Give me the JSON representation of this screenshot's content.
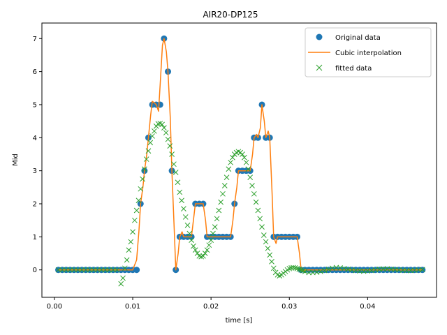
{
  "chart_data": {
    "type": "line",
    "title": "AIR20-DP125",
    "xlabel": "time [s]",
    "ylabel": "Mid",
    "xlim": [
      -0.0016,
      0.0488
    ],
    "ylim": [
      -0.83,
      7.47
    ],
    "x_ticks": [
      0.0,
      0.01,
      0.02,
      0.03,
      0.04
    ],
    "x_tick_labels": [
      "0.00",
      "0.01",
      "0.02",
      "0.03",
      "0.04"
    ],
    "y_ticks": [
      0,
      1,
      2,
      3,
      4,
      5,
      6,
      7
    ],
    "y_tick_labels": [
      "0",
      "1",
      "2",
      "3",
      "4",
      "5",
      "6",
      "7"
    ],
    "grid": false,
    "legend_position": "top-right",
    "colors": {
      "original": "#1f77b4",
      "cubic": "#ff7f0e",
      "fitted": "#2ca02c"
    },
    "series": [
      {
        "name": "Original data",
        "style": "markers",
        "marker": "circle",
        "x": [
          0.0005,
          0.001,
          0.0015,
          0.002,
          0.0025,
          0.003,
          0.0035,
          0.004,
          0.0045,
          0.005,
          0.0055,
          0.006,
          0.0065,
          0.007,
          0.0075,
          0.008,
          0.0085,
          0.009,
          0.0095,
          0.01,
          0.0105,
          0.011,
          0.0115,
          0.012,
          0.0125,
          0.013,
          0.0135,
          0.014,
          0.0145,
          0.015,
          0.0155,
          0.016,
          0.0165,
          0.017,
          0.0175,
          0.018,
          0.0185,
          0.019,
          0.0195,
          0.02,
          0.0205,
          0.021,
          0.0215,
          0.022,
          0.0225,
          0.023,
          0.0235,
          0.024,
          0.0245,
          0.025,
          0.0255,
          0.026,
          0.0265,
          0.027,
          0.0275,
          0.028,
          0.0285,
          0.029,
          0.0295,
          0.03,
          0.0305,
          0.031,
          0.0315,
          0.032,
          0.0325,
          0.033,
          0.0335,
          0.034,
          0.0345,
          0.035,
          0.0355,
          0.036,
          0.0365,
          0.037,
          0.0375,
          0.038,
          0.0385,
          0.039,
          0.0395,
          0.04,
          0.0405,
          0.041,
          0.0415,
          0.042,
          0.0425,
          0.043,
          0.0435,
          0.044,
          0.0445,
          0.045,
          0.0455,
          0.046,
          0.0465,
          0.047
        ],
        "values": [
          0,
          0,
          0,
          0,
          0,
          0,
          0,
          0,
          0,
          0,
          0,
          0,
          0,
          0,
          0,
          0,
          0,
          0,
          0,
          0,
          0,
          2,
          3,
          4,
          5,
          5,
          5,
          7,
          6,
          3,
          0,
          1,
          1,
          1,
          1,
          2,
          2,
          2,
          1,
          1,
          1,
          1,
          1,
          1,
          1,
          2,
          3,
          3,
          3,
          3,
          4,
          4,
          5,
          4,
          4,
          1,
          1,
          1,
          1,
          1,
          1,
          1,
          0,
          0,
          0,
          0,
          0,
          0,
          0,
          0,
          0,
          0,
          0,
          0,
          0,
          0,
          0,
          0,
          0,
          0,
          0,
          0,
          0,
          0,
          0,
          0,
          0,
          0,
          0,
          0,
          0,
          0,
          0,
          0
        ]
      },
      {
        "name": "Cubic interpolation",
        "style": "line",
        "x": [
          0.0005,
          0.0095,
          0.01,
          0.0105,
          0.0108,
          0.011,
          0.0113,
          0.0115,
          0.0118,
          0.012,
          0.0123,
          0.0125,
          0.0128,
          0.013,
          0.0133,
          0.0135,
          0.0138,
          0.014,
          0.0143,
          0.0145,
          0.0148,
          0.015,
          0.0153,
          0.0155,
          0.0158,
          0.016,
          0.0163,
          0.0165,
          0.017,
          0.0175,
          0.0178,
          0.018,
          0.0185,
          0.019,
          0.0193,
          0.0195,
          0.0198,
          0.02,
          0.0225,
          0.0228,
          0.023,
          0.0233,
          0.0235,
          0.024,
          0.0245,
          0.025,
          0.0253,
          0.0255,
          0.0258,
          0.026,
          0.0263,
          0.0265,
          0.0268,
          0.027,
          0.0273,
          0.0275,
          0.0278,
          0.028,
          0.0283,
          0.0285,
          0.029,
          0.031,
          0.0313,
          0.0315,
          0.0318,
          0.032,
          0.033,
          0.047
        ],
        "values": [
          0,
          0,
          0,
          0.3,
          1.2,
          2,
          2.5,
          3,
          3.5,
          4,
          4.7,
          5.1,
          5.05,
          5,
          4.8,
          5.6,
          6.8,
          7,
          6.6,
          6,
          4.6,
          3,
          1.2,
          0,
          0.5,
          1,
          1.15,
          1,
          1,
          1,
          1.6,
          2,
          2,
          2,
          1.5,
          1,
          1,
          1,
          1,
          1.5,
          2,
          2.5,
          3,
          3,
          3,
          3,
          3.5,
          4,
          4.1,
          4,
          4.3,
          5,
          4.5,
          4,
          4.2,
          4,
          2.3,
          1,
          0.8,
          1,
          1,
          1,
          0.5,
          0,
          -0.05,
          0,
          0,
          0
        ]
      },
      {
        "name": "fitted data",
        "style": "markers",
        "marker": "x",
        "x": [
          0.0005,
          0.001,
          0.0015,
          0.002,
          0.0025,
          0.003,
          0.0035,
          0.004,
          0.0045,
          0.005,
          0.0055,
          0.006,
          0.0065,
          0.007,
          0.0075,
          0.008,
          0.0085,
          0.00875,
          0.009,
          0.00925,
          0.0095,
          0.00975,
          0.01,
          0.01025,
          0.0105,
          0.01075,
          0.011,
          0.01125,
          0.0115,
          0.01175,
          0.012,
          0.01225,
          0.0125,
          0.01275,
          0.013,
          0.01325,
          0.0135,
          0.01375,
          0.014,
          0.01425,
          0.0145,
          0.01475,
          0.015,
          0.01525,
          0.0155,
          0.01575,
          0.016,
          0.01625,
          0.0165,
          0.01675,
          0.017,
          0.01725,
          0.0175,
          0.01775,
          0.018,
          0.01825,
          0.0185,
          0.01875,
          0.019,
          0.01925,
          0.0195,
          0.01975,
          0.02,
          0.02025,
          0.0205,
          0.02075,
          0.021,
          0.02125,
          0.0215,
          0.02175,
          0.022,
          0.02225,
          0.0225,
          0.02275,
          0.023,
          0.02325,
          0.0235,
          0.02375,
          0.024,
          0.02425,
          0.0245,
          0.02475,
          0.025,
          0.02525,
          0.0255,
          0.02575,
          0.026,
          0.02625,
          0.0265,
          0.02675,
          0.027,
          0.02725,
          0.0275,
          0.02775,
          0.028,
          0.02825,
          0.0285,
          0.02875,
          0.029,
          0.02925,
          0.0295,
          0.02975,
          0.03,
          0.03025,
          0.0305,
          0.03075,
          0.031,
          0.03125,
          0.0315,
          0.03175,
          0.032,
          0.0325,
          0.033,
          0.0335,
          0.034,
          0.0345,
          0.035,
          0.0355,
          0.036,
          0.0365,
          0.037,
          0.0375,
          0.038,
          0.0385,
          0.039,
          0.0395,
          0.04,
          0.0405,
          0.041,
          0.0415,
          0.042,
          0.0425,
          0.043,
          0.0435,
          0.044,
          0.0445,
          0.045,
          0.0455,
          0.046,
          0.0465,
          0.047
        ],
        "values": [
          0,
          0,
          0,
          0,
          0,
          0,
          0,
          0,
          0,
          0,
          0,
          0,
          0,
          0,
          0,
          0,
          -0.42,
          -0.25,
          0.05,
          0.3,
          0.6,
          0.85,
          1.15,
          1.5,
          1.8,
          2.1,
          2.45,
          2.75,
          3.05,
          3.35,
          3.6,
          3.85,
          4.05,
          4.2,
          4.35,
          4.42,
          4.43,
          4.4,
          4.3,
          4.15,
          3.95,
          3.75,
          3.5,
          3.2,
          2.95,
          2.65,
          2.35,
          2.1,
          1.85,
          1.6,
          1.35,
          1.1,
          0.9,
          0.72,
          0.6,
          0.5,
          0.42,
          0.4,
          0.42,
          0.5,
          0.6,
          0.75,
          0.9,
          1.1,
          1.3,
          1.55,
          1.8,
          2.05,
          2.3,
          2.55,
          2.8,
          3.05,
          3.25,
          3.4,
          3.5,
          3.55,
          3.58,
          3.55,
          3.5,
          3.4,
          3.25,
          3.05,
          2.8,
          2.55,
          2.3,
          2.05,
          1.8,
          1.55,
          1.3,
          1.05,
          0.85,
          0.65,
          0.45,
          0.25,
          0.05,
          -0.08,
          -0.15,
          -0.18,
          -0.15,
          -0.1,
          -0.05,
          0,
          0.04,
          0.06,
          0.07,
          0.06,
          0.04,
          0.02,
          0,
          -0.02,
          -0.05,
          -0.08,
          -0.08,
          -0.07,
          -0.05,
          -0.02,
          0.02,
          0.05,
          0.07,
          0.06,
          0.04,
          0.02,
          0,
          -0.02,
          -0.03,
          -0.04,
          -0.03,
          -0.02,
          0,
          0.02,
          0.03,
          0.03,
          0.02,
          0.01,
          0,
          -0.01,
          -0.02,
          -0.02,
          -0.01,
          0,
          0.01
        ]
      }
    ]
  }
}
